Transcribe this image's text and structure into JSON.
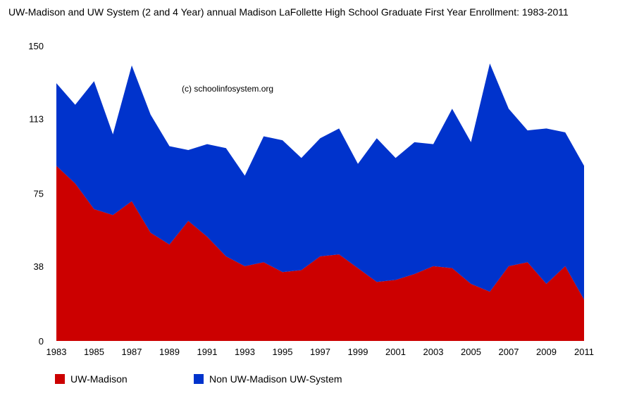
{
  "chart_data": {
    "type": "area",
    "stacked": true,
    "title": "UW-Madison and UW System (2 and 4 Year) annual Madison LaFollette High School Graduate First Year Enrollment: 1983-2011",
    "annotation": "(c) schoolinfosystem.org",
    "x": [
      1983,
      1984,
      1985,
      1986,
      1987,
      1988,
      1989,
      1990,
      1991,
      1992,
      1993,
      1994,
      1995,
      1996,
      1997,
      1998,
      1999,
      2000,
      2001,
      2002,
      2003,
      2004,
      2005,
      2006,
      2007,
      2008,
      2009,
      2010,
      2011
    ],
    "xticks": [
      "1983",
      "1985",
      "1987",
      "1989",
      "1991",
      "1993",
      "1995",
      "1997",
      "1999",
      "2001",
      "2003",
      "2005",
      "2007",
      "2009",
      "2011"
    ],
    "yticks": [
      "0",
      "38",
      "75",
      "113",
      "150"
    ],
    "ylim": [
      0,
      150
    ],
    "grid": false,
    "legend_position": "bottom",
    "series": [
      {
        "name": "UW-Madison",
        "color": "#cc0000",
        "values": [
          89,
          80,
          67,
          64,
          71,
          55,
          49,
          61,
          53,
          43,
          38,
          40,
          35,
          36,
          43,
          44,
          37,
          30,
          31,
          34,
          38,
          37,
          29,
          25,
          38,
          40,
          29,
          38,
          21
        ]
      },
      {
        "name": "Non UW-Madison UW-System",
        "color": "#0033cc",
        "values": [
          42,
          40,
          65,
          41,
          69,
          60,
          50,
          36,
          47,
          55,
          46,
          64,
          67,
          57,
          60,
          64,
          53,
          73,
          62,
          67,
          62,
          81,
          72,
          116,
          80,
          67,
          79,
          68,
          68
        ]
      }
    ]
  }
}
